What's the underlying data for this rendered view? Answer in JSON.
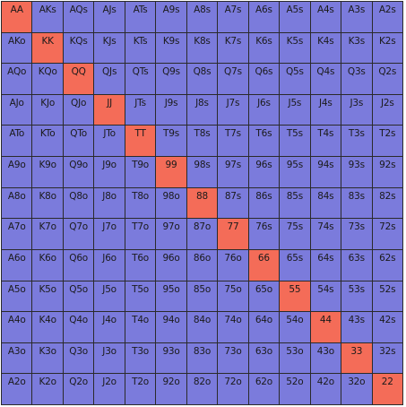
{
  "colors": {
    "pair": "#f46c58",
    "default": "#7b7bdc",
    "grid_line": "#2a2a2a"
  },
  "rows": [
    [
      "AA",
      "AKs",
      "AQs",
      "AJs",
      "ATs",
      "A9s",
      "A8s",
      "A7s",
      "A6s",
      "A5s",
      "A4s",
      "A3s",
      "A2s"
    ],
    [
      "AKo",
      "KK",
      "KQs",
      "KJs",
      "KTs",
      "K9s",
      "K8s",
      "K7s",
      "K6s",
      "K5s",
      "K4s",
      "K3s",
      "K2s"
    ],
    [
      "AQo",
      "KQo",
      "QQ",
      "QJs",
      "QTs",
      "Q9s",
      "Q8s",
      "Q7s",
      "Q6s",
      "Q5s",
      "Q4s",
      "Q3s",
      "Q2s"
    ],
    [
      "AJo",
      "KJo",
      "QJo",
      "JJ",
      "JTs",
      "J9s",
      "J8s",
      "J7s",
      "J6s",
      "J5s",
      "J4s",
      "J3s",
      "J2s"
    ],
    [
      "ATo",
      "KTo",
      "QTo",
      "JTo",
      "TT",
      "T9s",
      "T8s",
      "T7s",
      "T6s",
      "T5s",
      "T4s",
      "T3s",
      "T2s"
    ],
    [
      "A9o",
      "K9o",
      "Q9o",
      "J9o",
      "T9o",
      "99",
      "98s",
      "97s",
      "96s",
      "95s",
      "94s",
      "93s",
      "92s"
    ],
    [
      "A8o",
      "K8o",
      "Q8o",
      "J8o",
      "T8o",
      "98o",
      "88",
      "87s",
      "86s",
      "85s",
      "84s",
      "83s",
      "82s"
    ],
    [
      "A7o",
      "K7o",
      "Q7o",
      "J7o",
      "T7o",
      "97o",
      "87o",
      "77",
      "76s",
      "75s",
      "74s",
      "73s",
      "72s"
    ],
    [
      "A6o",
      "K6o",
      "Q6o",
      "J6o",
      "T6o",
      "96o",
      "86o",
      "76o",
      "66",
      "65s",
      "64s",
      "63s",
      "62s"
    ],
    [
      "A5o",
      "K5o",
      "Q5o",
      "J5o",
      "T5o",
      "95o",
      "85o",
      "75o",
      "65o",
      "55",
      "54s",
      "53s",
      "52s"
    ],
    [
      "A4o",
      "K4o",
      "Q4o",
      "J4o",
      "T4o",
      "94o",
      "84o",
      "74o",
      "64o",
      "54o",
      "44",
      "43s",
      "42s"
    ],
    [
      "A3o",
      "K3o",
      "Q3o",
      "J3o",
      "T3o",
      "93o",
      "83o",
      "73o",
      "63o",
      "53o",
      "43o",
      "33",
      "32s"
    ],
    [
      "A2o",
      "K2o",
      "Q2o",
      "J2o",
      "T2o",
      "92o",
      "82o",
      "72o",
      "62o",
      "52o",
      "42o",
      "32o",
      "22"
    ]
  ]
}
